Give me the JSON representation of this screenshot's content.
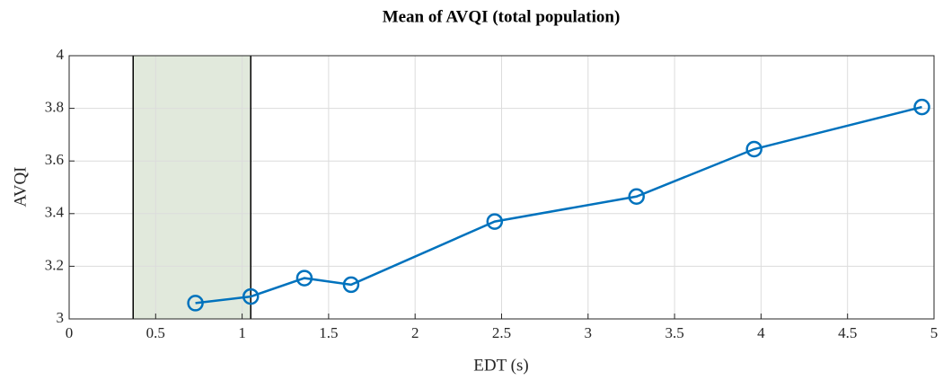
{
  "chart_data": {
    "type": "line",
    "title": "Mean of AVQI (total population)",
    "x_label": "EDT (s)",
    "y_label": "AVQI",
    "x": [
      0.73,
      1.05,
      1.36,
      1.63,
      2.46,
      3.28,
      3.96,
      4.93
    ],
    "series": [
      {
        "color": "#0072bd",
        "values": [
          3.06,
          3.085,
          3.155,
          3.13,
          3.37,
          3.465,
          3.645,
          3.805
        ]
      }
    ],
    "shaded_region": [
      0.37,
      1.05
    ],
    "shaded_color": "#e1e9dc",
    "xlim": [
      0,
      5
    ],
    "xticks": [
      0,
      0.5,
      1,
      1.5,
      2,
      2.5,
      3,
      3.5,
      4,
      4.5,
      5
    ],
    "ylim": [
      3,
      4
    ],
    "yticks": [
      3,
      3.2,
      3.4,
      3.6,
      3.8,
      4
    ],
    "grid": true
  }
}
